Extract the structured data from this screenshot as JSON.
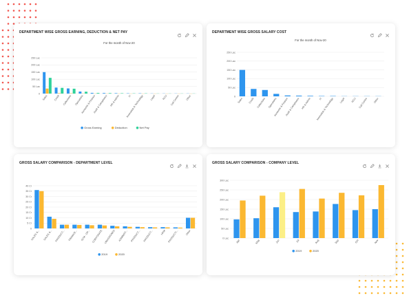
{
  "colors": {
    "blue": "#2e95ee",
    "orange": "#fbb831",
    "green": "#2fd19a",
    "lightyellow": "#fcef86",
    "grid": "#e9e9e9",
    "accent_dots": "#f2564f"
  },
  "cards": [
    {
      "title": "DEPARTMENT WISE GROSS EARNING, DEDUCTION & NET PAY",
      "icons": [
        "refresh-icon",
        "edit-icon",
        "close-icon"
      ]
    },
    {
      "title": "DEPARTMENT WISE GROSS SALARY COST",
      "icons": [
        "refresh-icon",
        "edit-icon",
        "close-icon"
      ]
    },
    {
      "title": "GROSS SALARY COMPARISON - DEPARTMENT LEVEL",
      "icons": [
        "refresh-icon",
        "edit-icon",
        "download-icon",
        "close-icon"
      ]
    },
    {
      "title": "GROSS SALARY COMPARISON - COMPANY LEVEL",
      "icons": [
        "refresh-icon",
        "edit-icon",
        "download-icon",
        "close-icon"
      ]
    }
  ],
  "chart_data": [
    {
      "type": "bar",
      "subtitle": "For the month of Nov-20",
      "yticks": [
        "0",
        "50 Lac",
        "100 Lac",
        "150 Lac",
        "200 Lac",
        "250 Lac"
      ],
      "ylim": [
        0,
        250
      ],
      "categories": [
        "Sales",
        "Credit",
        "Collections",
        "Operations",
        "Accounts & Finance",
        "Audit & Compliance",
        "HR & Admin",
        "IT",
        "Innovation & Technology",
        "Legal",
        "RCU",
        "Call Centre",
        "Other"
      ],
      "series": [
        {
          "name": "Gross Earning",
          "color": "#2e95ee",
          "values": [
            150,
            42,
            36,
            14,
            5,
            4,
            3,
            2,
            2,
            1,
            1,
            1,
            1
          ]
        },
        {
          "name": "Deduction",
          "color": "#fbb831",
          "values": [
            35,
            3,
            2,
            1,
            0.5,
            0.5,
            0.5,
            0.3,
            0.3,
            0.2,
            0.2,
            0.2,
            0.2
          ]
        },
        {
          "name": "Net Pay",
          "color": "#2fd19a",
          "values": [
            110,
            40,
            34,
            13,
            4.5,
            3.5,
            2.5,
            1.7,
            1.7,
            0.8,
            0.8,
            0.8,
            0.8
          ]
        }
      ],
      "legend": "bottom"
    },
    {
      "type": "bar",
      "subtitle": "For the month of Nov-20",
      "yticks": [
        "0",
        "50 Lac",
        "100 Lac",
        "150 Lac",
        "200 Lac",
        "250 Lac"
      ],
      "ylim": [
        0,
        250
      ],
      "categories": [
        "Sales",
        "Credit",
        "Collections",
        "Operations",
        "Accounts & Finance",
        "Audit & Compliance",
        "HR & Admin",
        "IT",
        "Innovation & Technology",
        "Legal",
        "RCU",
        "Call Centre",
        "Other"
      ],
      "series": [
        {
          "name": "",
          "color": "#2e95ee",
          "values": [
            150,
            42,
            36,
            14,
            5,
            4,
            3,
            2,
            2,
            1,
            1,
            1,
            1
          ]
        }
      ]
    },
    {
      "type": "bar",
      "yticks": [
        "0",
        "5 Cr",
        "10 Cr",
        "15 Cr",
        "20 Cr",
        "25 Cr",
        "30 Cr",
        "35 Cr",
        "40 Cr"
      ],
      "ylim": [
        0,
        40
      ],
      "categories": [
        "SALES &...",
        "SALES &...",
        "PRODUCT...",
        "FINANCE...",
        "SCM - OP...",
        "CORPORATE",
        "UNASSIGNED",
        "ADMINIST...",
        "PRODUCT...",
        "PRODUCT...",
        "HRM",
        "PRODUCTI...",
        "Other"
      ],
      "series": [
        {
          "name": "2019",
          "color": "#2e95ee",
          "values": [
            36,
            11,
            3.5,
            3.5,
            3.5,
            3.5,
            2.5,
            2,
            1.5,
            1.2,
            1.2,
            1,
            10
          ]
        },
        {
          "name": "2020",
          "color": "#fbb831",
          "values": [
            35,
            9,
            3.5,
            3.3,
            3,
            2.8,
            2,
            1.5,
            1.2,
            1,
            1,
            0.8,
            10
          ]
        }
      ],
      "legend": "bottom"
    },
    {
      "type": "bar",
      "yticks": [
        "0 Lac",
        "50 Lac",
        "100 Lac",
        "150 Lac",
        "200 Lac",
        "250 Lac",
        "300 Lac"
      ],
      "ylim": [
        0,
        300
      ],
      "categories": [
        "Apr",
        "May",
        "Jun",
        "Jul",
        "Aug",
        "Sep",
        "Oct",
        "Nov"
      ],
      "series": [
        {
          "name": "2019",
          "color": "#2e95ee",
          "values": [
            97,
            103,
            160,
            135,
            138,
            177,
            145,
            150
          ]
        },
        {
          "name": "2020",
          "color": "#fbb831",
          "values": [
            195,
            220,
            238,
            255,
            205,
            235,
            222,
            275
          ]
        }
      ],
      "highlight": {
        "category": "Jun",
        "series": "2020",
        "color": "#fcef86"
      },
      "legend": "bottom"
    }
  ]
}
